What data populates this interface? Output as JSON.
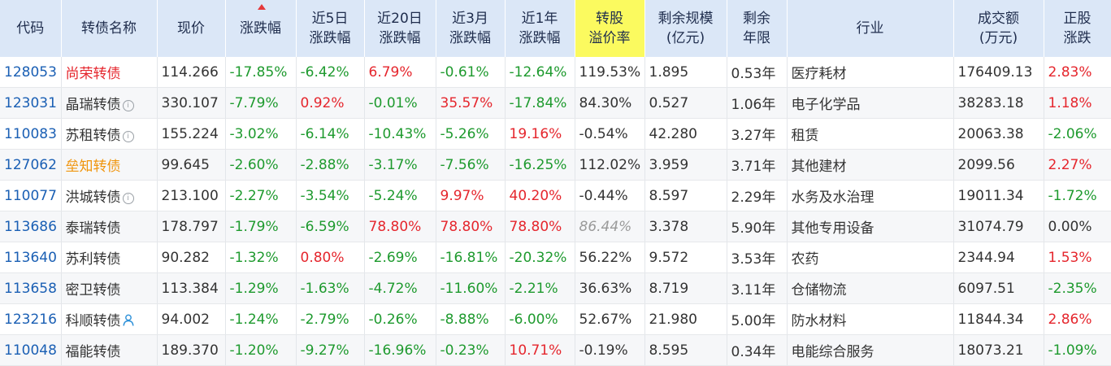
{
  "colors": {
    "header_bg": "#dbe7f7",
    "highlight_header_bg": "#fbfa5f",
    "up": "#e5262d",
    "down": "#1e9a2e",
    "code": "#1a5fb4",
    "orange_name": "#f0950d"
  },
  "headers": {
    "code": [
      "代码"
    ],
    "name": [
      "转债名称"
    ],
    "price": [
      "现价"
    ],
    "change": [
      "涨跌幅"
    ],
    "d5": [
      "近5日",
      "涨跌幅"
    ],
    "d20": [
      "近20日",
      "涨跌幅"
    ],
    "m3": [
      "近3月",
      "涨跌幅"
    ],
    "y1": [
      "近1年",
      "涨跌幅"
    ],
    "premium": [
      "转股",
      "溢价率"
    ],
    "scale": [
      "剩余规模",
      "(亿元)"
    ],
    "term": [
      "剩余",
      "年限"
    ],
    "industry": [
      "行业"
    ],
    "turnover": [
      "成交额",
      "(万元)"
    ],
    "stock": [
      "正股",
      "涨跌"
    ]
  },
  "rows": [
    {
      "code": "128053",
      "name": "尚荣转债",
      "name_style": "red",
      "icon": "",
      "price": "114.266",
      "change": "-17.85%",
      "d5": "-6.42%",
      "d20": "6.79%",
      "m3": "-0.61%",
      "y1": "-12.64%",
      "premium": "119.53%",
      "premium_style": "neu",
      "scale": "1.895",
      "term": "0.53年",
      "industry": "医疗耗材",
      "turnover": "176409.13",
      "stock": "2.83%"
    },
    {
      "code": "123031",
      "name": "晶瑞转债",
      "name_style": "normal",
      "icon": "info",
      "price": "330.107",
      "change": "-7.79%",
      "d5": "0.92%",
      "d20": "-0.01%",
      "m3": "35.57%",
      "y1": "-17.84%",
      "premium": "84.30%",
      "premium_style": "neu",
      "scale": "0.527",
      "term": "1.06年",
      "industry": "电子化学品",
      "turnover": "38283.18",
      "stock": "1.18%"
    },
    {
      "code": "110083",
      "name": "苏租转债",
      "name_style": "normal",
      "icon": "info",
      "price": "155.224",
      "change": "-3.02%",
      "d5": "-6.14%",
      "d20": "-10.43%",
      "m3": "-5.26%",
      "y1": "19.16%",
      "premium": "-0.54%",
      "premium_style": "neu",
      "scale": "42.280",
      "term": "3.27年",
      "industry": "租赁",
      "turnover": "20063.38",
      "stock": "-2.06%"
    },
    {
      "code": "127062",
      "name": "垒知转债",
      "name_style": "orange",
      "icon": "",
      "price": "99.645",
      "change": "-2.60%",
      "d5": "-2.88%",
      "d20": "-3.17%",
      "m3": "-7.56%",
      "y1": "-16.25%",
      "premium": "112.02%",
      "premium_style": "neu",
      "scale": "3.959",
      "term": "3.71年",
      "industry": "其他建材",
      "turnover": "2099.56",
      "stock": "2.27%"
    },
    {
      "code": "110077",
      "name": "洪城转债",
      "name_style": "normal",
      "icon": "info",
      "price": "213.100",
      "change": "-2.27%",
      "d5": "-3.54%",
      "d20": "-5.24%",
      "m3": "9.97%",
      "y1": "40.20%",
      "premium": "-0.44%",
      "premium_style": "neu",
      "scale": "8.597",
      "term": "2.29年",
      "industry": "水务及水治理",
      "turnover": "19011.34",
      "stock": "-1.72%"
    },
    {
      "code": "113686",
      "name": "泰瑞转债",
      "name_style": "normal",
      "icon": "",
      "price": "178.797",
      "change": "-1.79%",
      "d5": "-6.59%",
      "d20": "78.80%",
      "m3": "78.80%",
      "y1": "78.80%",
      "premium": "86.44%",
      "premium_style": "ital",
      "scale": "3.378",
      "term": "5.90年",
      "industry": "其他专用设备",
      "turnover": "31074.79",
      "stock": "0.00%"
    },
    {
      "code": "113640",
      "name": "苏利转债",
      "name_style": "normal",
      "icon": "",
      "price": "90.282",
      "change": "-1.32%",
      "d5": "0.80%",
      "d20": "-2.69%",
      "m3": "-16.81%",
      "y1": "-20.32%",
      "premium": "56.22%",
      "premium_style": "neu",
      "scale": "9.572",
      "term": "3.53年",
      "industry": "农药",
      "turnover": "2344.94",
      "stock": "1.53%"
    },
    {
      "code": "113658",
      "name": "密卫转债",
      "name_style": "normal",
      "icon": "",
      "price": "113.384",
      "change": "-1.29%",
      "d5": "-1.63%",
      "d20": "-4.72%",
      "m3": "-11.60%",
      "y1": "-2.21%",
      "premium": "36.63%",
      "premium_style": "neu",
      "scale": "8.719",
      "term": "3.11年",
      "industry": "仓储物流",
      "turnover": "6097.51",
      "stock": "-2.35%"
    },
    {
      "code": "123216",
      "name": "科顺转债",
      "name_style": "normal",
      "icon": "person",
      "price": "94.002",
      "change": "-1.24%",
      "d5": "-2.79%",
      "d20": "-0.26%",
      "m3": "-8.88%",
      "y1": "-6.00%",
      "premium": "52.67%",
      "premium_style": "neu",
      "scale": "21.980",
      "term": "5.00年",
      "industry": "防水材料",
      "turnover": "11844.34",
      "stock": "2.86%"
    },
    {
      "code": "110048",
      "name": "福能转债",
      "name_style": "normal",
      "icon": "",
      "price": "189.370",
      "change": "-1.20%",
      "d5": "-9.27%",
      "d20": "-16.96%",
      "m3": "-0.23%",
      "y1": "10.71%",
      "premium": "-0.19%",
      "premium_style": "neu",
      "scale": "8.595",
      "term": "0.34年",
      "industry": "电能综合服务",
      "turnover": "18073.21",
      "stock": "-1.09%"
    }
  ]
}
